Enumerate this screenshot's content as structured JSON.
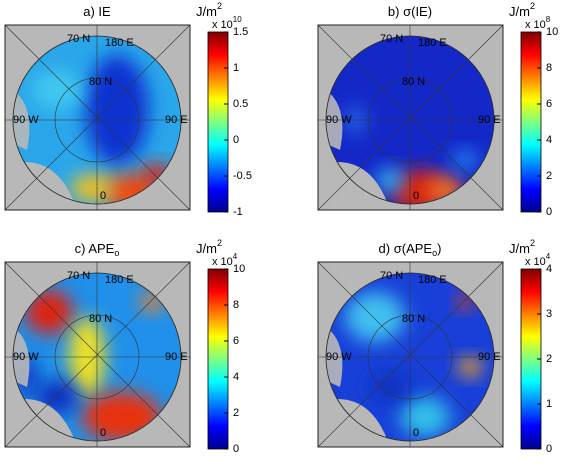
{
  "panels": [
    {
      "title": "a) IE",
      "title_sub": "",
      "title_end": "",
      "unit": "J/m",
      "unit_sup": "2",
      "scale": "x 10",
      "scale_exp": "10",
      "colorbar": {
        "lim": [
          -1,
          1.5
        ],
        "ticks": [
          -1,
          -0.5,
          0,
          0.5,
          1,
          1.5
        ]
      },
      "map_labels": [
        "70 N",
        "180 E",
        "80 N",
        "90 W",
        "90 E",
        "0"
      ]
    },
    {
      "title": "b) σ(IE)",
      "title_sub": "",
      "title_end": "",
      "unit": "J/m",
      "unit_sup": "2",
      "scale": "x 10",
      "scale_exp": "8",
      "colorbar": {
        "lim": [
          0,
          10
        ],
        "ticks": [
          0,
          2,
          4,
          6,
          8,
          10
        ]
      },
      "map_labels": [
        "70 N",
        "180 E",
        "80 N",
        "90 W",
        "90 E",
        "0"
      ]
    },
    {
      "title": "c) APE",
      "title_sub": "o",
      "title_end": "",
      "unit": "J/m",
      "unit_sup": "2",
      "scale": "x 10",
      "scale_exp": "4",
      "colorbar": {
        "lim": [
          0,
          10
        ],
        "ticks": [
          0,
          2,
          4,
          6,
          8,
          10
        ]
      },
      "map_labels": [
        "70 N",
        "180 E",
        "80 N",
        "90 W",
        "90 E",
        "0"
      ]
    },
    {
      "title": "d) σ(APE",
      "title_sub": "o",
      "title_end": ")",
      "unit": "J/m",
      "unit_sup": "2",
      "scale": "x 10",
      "scale_exp": "4",
      "colorbar": {
        "lim": [
          0,
          4
        ],
        "ticks": [
          0,
          1,
          2,
          3,
          4
        ]
      },
      "map_labels": [
        "70 N",
        "180 E",
        "80 N",
        "90 W",
        "90 E",
        "0"
      ]
    }
  ]
}
